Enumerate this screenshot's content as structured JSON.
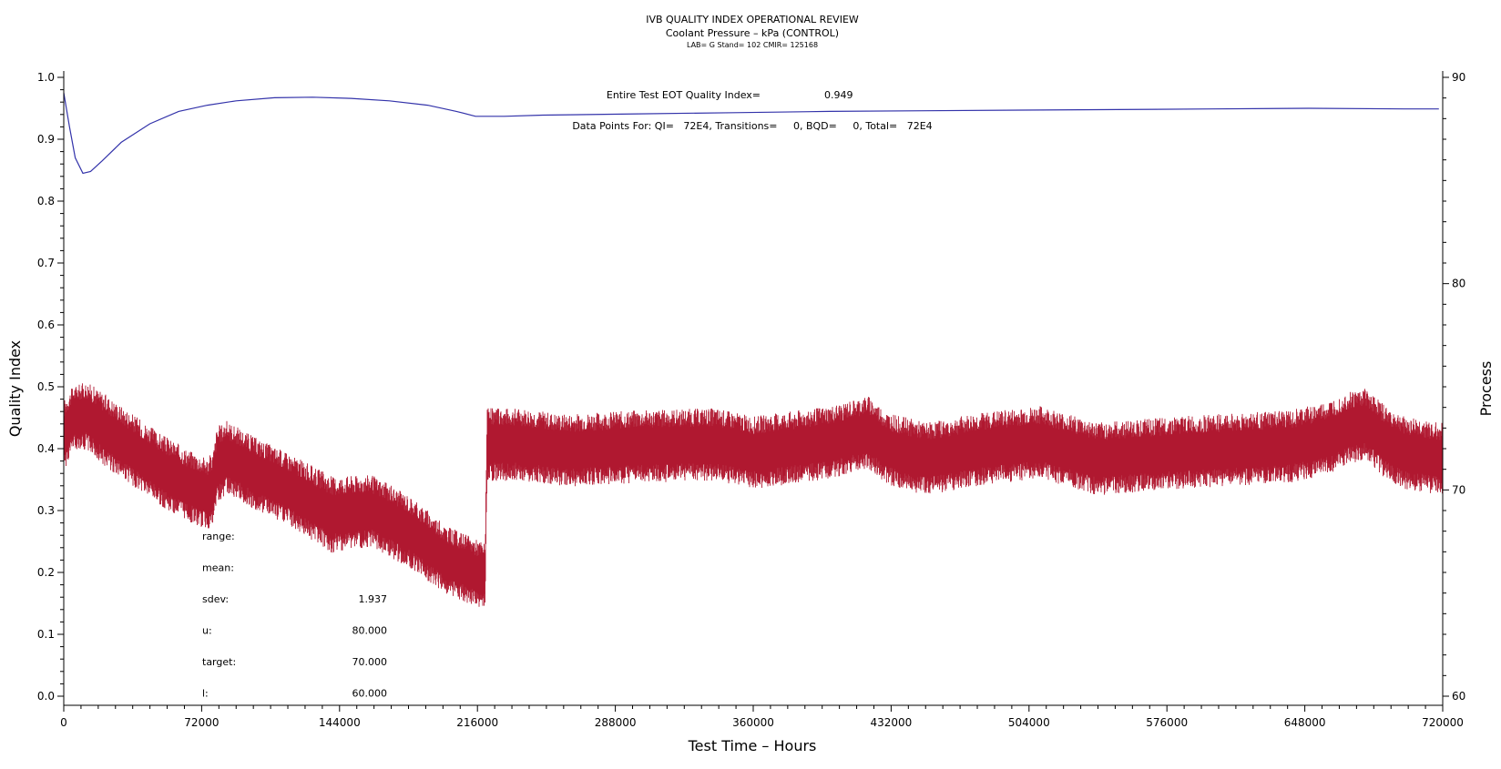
{
  "chart_data": {
    "type": "line",
    "title": "IVB QUALITY INDEX OPERATIONAL REVIEW",
    "subtitle": "Coolant Pressure – kPa (CONTROL)",
    "subtitle2": "LAB= G Stand= 102 CMIR= 125168",
    "xlabel": "Test Time – Hours",
    "ylabel": "Quality Index",
    "y2label": "Process",
    "xlim": [
      0,
      720000
    ],
    "ylim": [
      0,
      1.0
    ],
    "y2lim": [
      60,
      90
    ],
    "x_ticks": [
      "0",
      "72000",
      "144000",
      "216000",
      "288000",
      "360000",
      "432000",
      "504000",
      "576000",
      "648000",
      "720000"
    ],
    "y_ticks": [
      "0.0",
      "0.1",
      "0.2",
      "0.3",
      "0.4",
      "0.5",
      "0.6",
      "0.7",
      "0.8",
      "0.9",
      "1.0"
    ],
    "y2_ticks": [
      "60",
      "70",
      "80",
      "90"
    ],
    "annotations": {
      "eot_label": "Entire Test EOT Quality Index=",
      "eot_value": "0.949",
      "points_text": "Data Points For: QI=   72E4, Transitions=     0, BQD=     0, Total=   72E4"
    },
    "stats": [
      {
        "label": "range:",
        "value": ""
      },
      {
        "label": "mean:",
        "value": ""
      },
      {
        "label": "sdev:",
        "value": "1.937"
      },
      {
        "label": "u:",
        "value": "80.000"
      },
      {
        "label": "target:",
        "value": "70.000"
      },
      {
        "label": "l:",
        "value": "60.000"
      }
    ],
    "series": [
      {
        "axis": "left",
        "color": "#3333aa",
        "x": [
          0,
          3000,
          6000,
          10000,
          14000,
          20000,
          30000,
          45000,
          60000,
          75000,
          90000,
          110000,
          130000,
          150000,
          170000,
          190000,
          205000,
          215000,
          230000,
          250000,
          300000,
          350000,
          400000,
          450000,
          500000,
          550000,
          600000,
          650000,
          700000,
          718000
        ],
        "y": [
          0.975,
          0.92,
          0.87,
          0.845,
          0.848,
          0.865,
          0.895,
          0.925,
          0.945,
          0.955,
          0.962,
          0.967,
          0.968,
          0.966,
          0.962,
          0.955,
          0.945,
          0.937,
          0.937,
          0.939,
          0.941,
          0.943,
          0.945,
          0.946,
          0.947,
          0.948,
          0.949,
          0.95,
          0.949,
          0.949
        ]
      },
      {
        "axis": "right",
        "color": "#b01830",
        "band": true,
        "x": [
          0,
          5000,
          12000,
          20000,
          35000,
          50000,
          65000,
          75000,
          78000,
          80000,
          85000,
          100000,
          120000,
          140000,
          160000,
          180000,
          200000,
          215000,
          220000,
          221000,
          240000,
          260000,
          300000,
          340000,
          360000,
          400000,
          420000,
          430000,
          450000,
          480000,
          510000,
          540000,
          580000,
          620000,
          640000,
          660000,
          670000,
          680000,
          690000,
          700000,
          720000
        ],
        "center": [
          72.6,
          73.5,
          73.6,
          73.0,
          72.0,
          71.0,
          70.2,
          69.8,
          70.0,
          71.2,
          71.6,
          70.8,
          69.9,
          68.8,
          69.0,
          68.0,
          66.6,
          66.0,
          65.8,
          72.2,
          72.2,
          71.9,
          72.1,
          72.2,
          71.8,
          72.3,
          72.8,
          72.0,
          71.5,
          72.0,
          72.3,
          71.5,
          71.8,
          72.0,
          72.1,
          72.5,
          73.0,
          73.2,
          72.3,
          71.8,
          71.5
        ],
        "spread": [
          1.6,
          1.4,
          1.5,
          1.6,
          1.6,
          1.6,
          1.6,
          1.6,
          1.7,
          1.7,
          1.6,
          1.6,
          1.6,
          1.7,
          1.6,
          1.6,
          1.5,
          1.5,
          1.5,
          1.6,
          1.6,
          1.6,
          1.6,
          1.6,
          1.6,
          1.6,
          1.6,
          1.6,
          1.6,
          1.6,
          1.6,
          1.6,
          1.6,
          1.6,
          1.6,
          1.6,
          1.6,
          1.6,
          1.6,
          1.6,
          1.6
        ]
      }
    ]
  }
}
